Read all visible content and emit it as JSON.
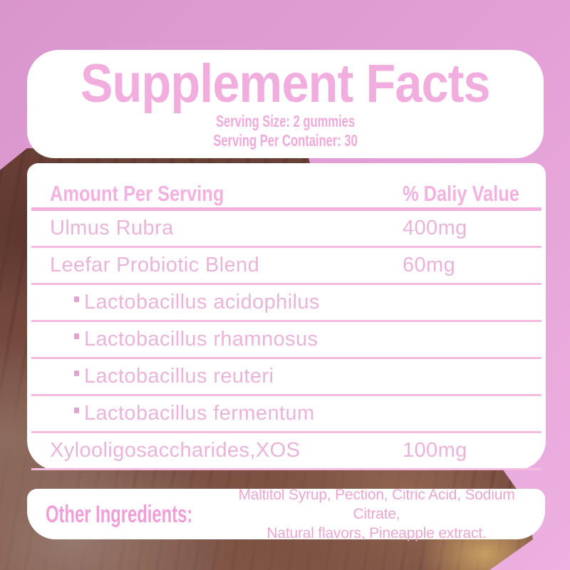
{
  "top_panel": {
    "title": "Supplement Facts",
    "serving_size": "Serving Size: 2 gummies",
    "servings_per_container": "Serving Per Container: 30"
  },
  "table": {
    "header": {
      "amount_label": "Amount Per Serving",
      "daily_value_label": "% Daliy Value"
    },
    "rows": [
      {
        "name": "Ulmus Rubra",
        "value": "400mg",
        "indent": false
      },
      {
        "name": "Leefar Probiotic Blend",
        "value": "60mg",
        "indent": false
      },
      {
        "name": "Lactobacillus acidophilus",
        "value": "",
        "indent": true
      },
      {
        "name": "Lactobacillus rhamnosus",
        "value": "",
        "indent": true
      },
      {
        "name": "Lactobacillus reuteri",
        "value": "",
        "indent": true
      },
      {
        "name": "Lactobacillus fermentum",
        "value": "",
        "indent": true
      },
      {
        "name": "Xylooligosaccharides,XOS",
        "value": "100mg",
        "indent": false
      }
    ]
  },
  "footer": {
    "label": "Other Ingredients:",
    "line1": "Maltitol Syrup, Pection, Citric Acid, Sodium Citrate,",
    "line2": "Natural flavors, Pineapple extract."
  },
  "colors": {
    "background_pink": "#e3a0d6",
    "panel_white": "#ffffff",
    "accent_pink_text": "#f1addd",
    "table_line_pink": "#f2bbdf",
    "bark_brown": "#74493c"
  }
}
